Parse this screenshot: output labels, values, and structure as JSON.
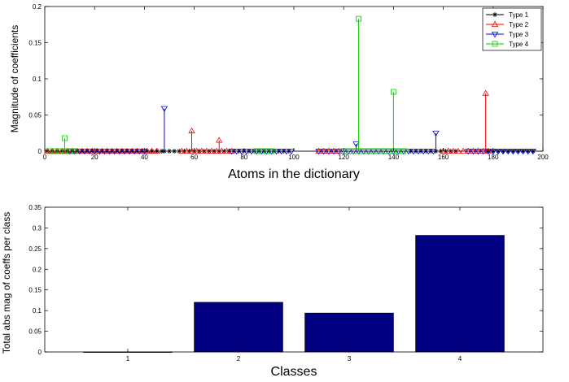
{
  "chart_data": [
    {
      "type": "stem",
      "xlabel": "Atoms in the dictionary",
      "ylabel": "Magnitude of coefficients",
      "xlim": [
        0,
        200
      ],
      "ylim": [
        0,
        0.2
      ],
      "xticks": [
        0,
        20,
        40,
        60,
        80,
        100,
        120,
        140,
        160,
        180,
        200
      ],
      "yticks": [
        0,
        0.05,
        0.1,
        0.15,
        0.2
      ],
      "ytick_labels": [
        "0",
        "0.05",
        "0.1",
        "0.15",
        "0.2"
      ],
      "legend_position": "top-right",
      "series": [
        {
          "name": "Type 1",
          "color": "#000000",
          "marker": "star",
          "x_ranges": [
            [
              1,
              47
            ],
            [
              48,
              98
            ],
            [
              147,
              166
            ],
            [
              178,
              196
            ]
          ],
          "stems": []
        },
        {
          "name": "Type 2",
          "color": "#ff0000",
          "marker": "triangle-up",
          "x_ranges": [
            [
              1,
              45
            ],
            [
              55,
              75
            ],
            [
              110,
              118
            ],
            [
              160,
              178
            ]
          ],
          "stems": [
            {
              "x": 59,
              "y": 0.028
            },
            {
              "x": 70,
              "y": 0.015
            },
            {
              "x": 177,
              "y": 0.08
            }
          ]
        },
        {
          "name": "Type 3",
          "color": "#0000ff",
          "marker": "triangle-down",
          "x_ranges": [
            [
              10,
              40
            ],
            [
              75,
              100
            ],
            [
              110,
              157
            ],
            [
              170,
              196
            ]
          ],
          "stems": [
            {
              "x": 48,
              "y": 0.059
            },
            {
              "x": 125,
              "y": 0.01
            },
            {
              "x": 157,
              "y": 0.025
            }
          ]
        },
        {
          "name": "Type 4",
          "color": "#00cc00",
          "marker": "square",
          "x_ranges": [
            [
              2,
              12
            ],
            [
              85,
              92
            ],
            [
              120,
              145
            ]
          ],
          "stems": [
            {
              "x": 8,
              "y": 0.018
            },
            {
              "x": 126,
              "y": 0.183
            },
            {
              "x": 140,
              "y": 0.082
            }
          ]
        }
      ]
    },
    {
      "type": "bar",
      "xlabel": "Classes",
      "ylabel": "Total abs mag of coeffs per class",
      "categories": [
        "1",
        "2",
        "3",
        "4"
      ],
      "values": [
        0.0,
        0.12,
        0.094,
        0.282
      ],
      "ylim": [
        0,
        0.35
      ],
      "yticks": [
        0,
        0.05,
        0.1,
        0.15,
        0.2,
        0.25,
        0.3,
        0.35
      ],
      "ytick_labels": [
        "0",
        "0.05",
        "0.1",
        "0.15",
        "0.2",
        "0.25",
        "0.3",
        "0.35"
      ],
      "bar_color": "#000080"
    }
  ]
}
